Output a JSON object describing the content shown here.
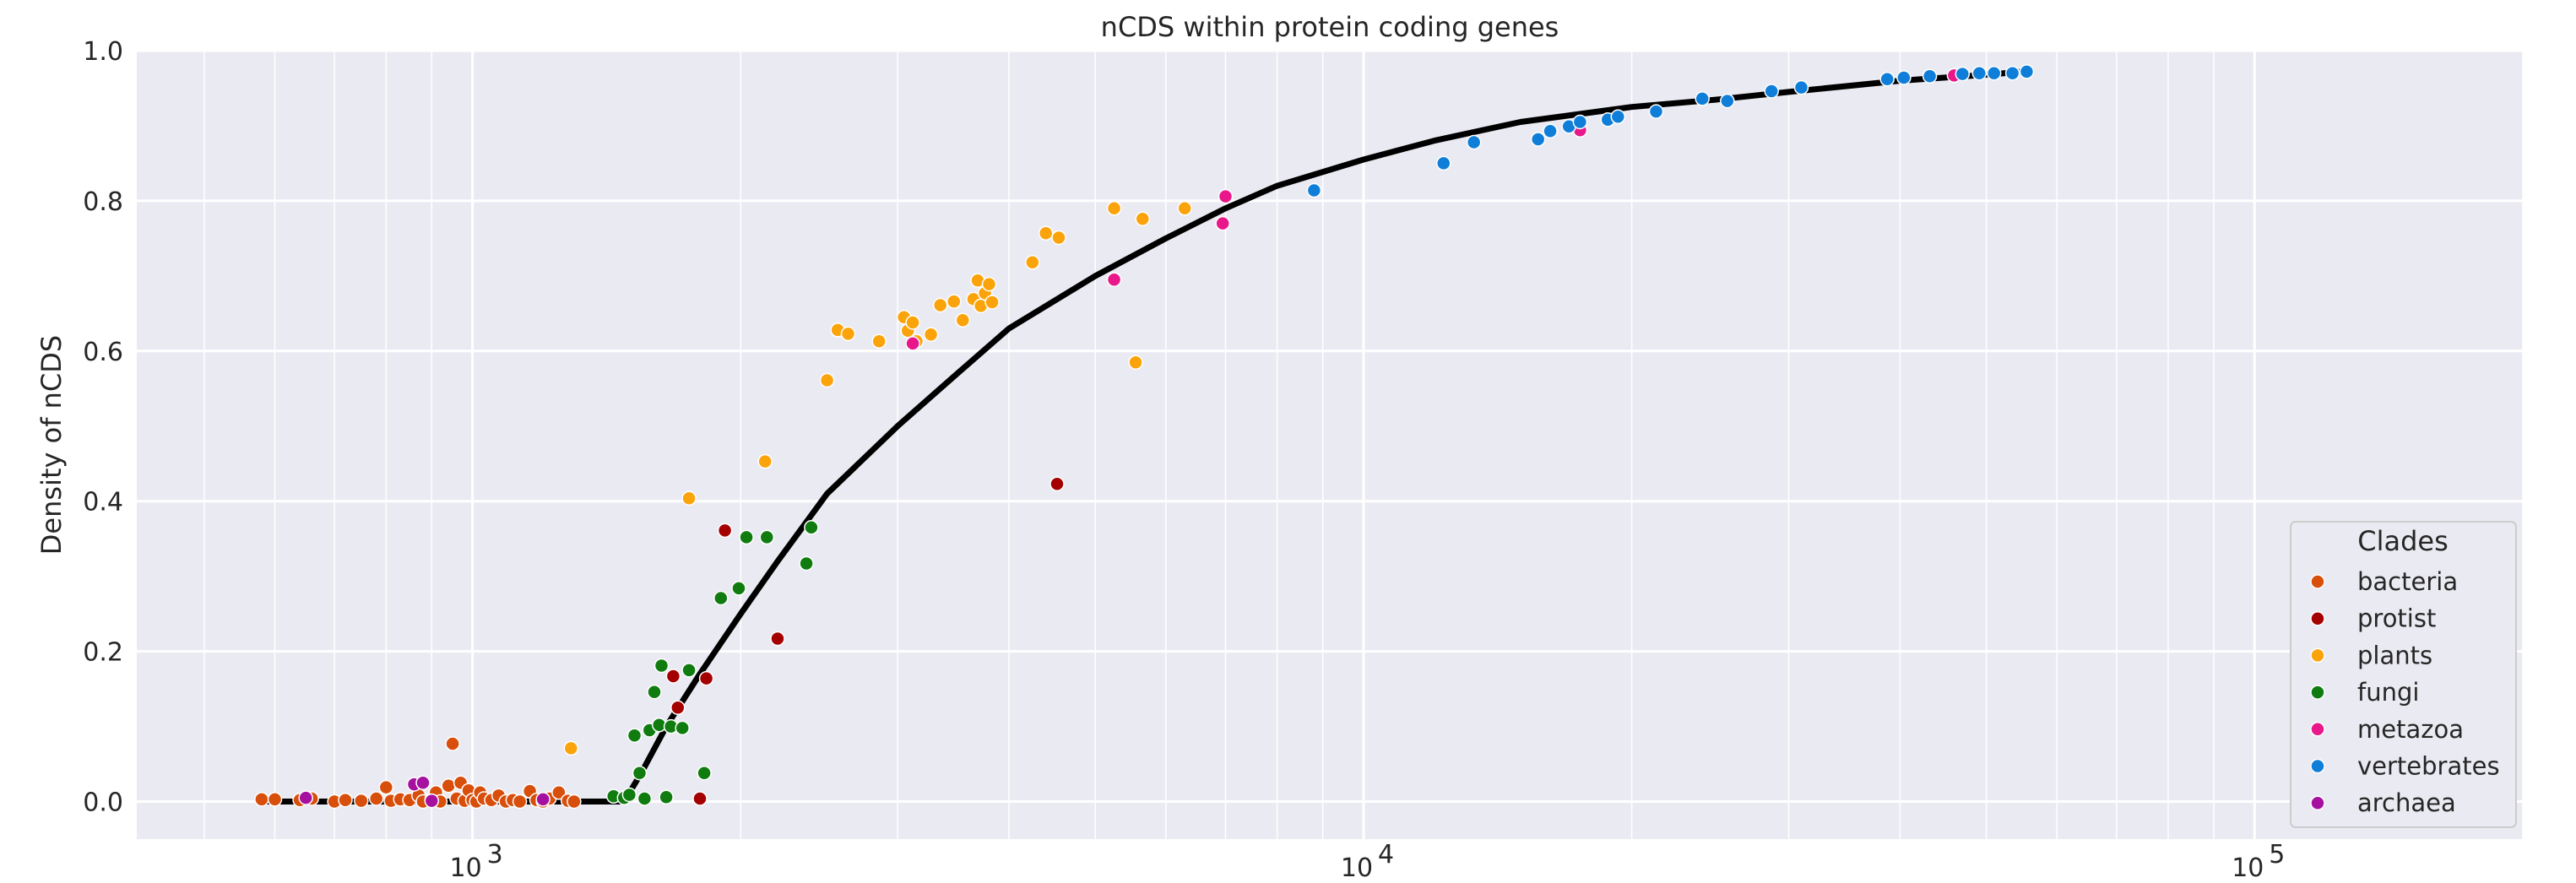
{
  "chart_data": {
    "type": "scatter",
    "title": "nCDS within protein coding genes",
    "xlabel": "",
    "ylabel": "Density of nCDS",
    "x_scale": "log",
    "xlim": [
      420,
      200000
    ],
    "ylim": [
      -0.05,
      1.0
    ],
    "grid": true,
    "x_major_ticks": [
      {
        "value": 1000,
        "label": "10",
        "exp": "3"
      },
      {
        "value": 10000,
        "label": "10",
        "exp": "4"
      },
      {
        "value": 100000,
        "label": "10",
        "exp": "5"
      }
    ],
    "x_minor_ticks": [
      500,
      600,
      700,
      800,
      900,
      2000,
      3000,
      4000,
      5000,
      6000,
      7000,
      8000,
      9000,
      20000,
      30000,
      40000,
      50000,
      60000,
      70000,
      80000,
      90000,
      200000
    ],
    "y_ticks": [
      {
        "value": 0.0,
        "label": "0.0"
      },
      {
        "value": 0.2,
        "label": "0.2"
      },
      {
        "value": 0.4,
        "label": "0.4"
      },
      {
        "value": 0.6,
        "label": "0.6"
      },
      {
        "value": 0.8,
        "label": "0.8"
      },
      {
        "value": 1.0,
        "label": "1.0"
      }
    ],
    "legend": {
      "title": "Clades",
      "position": "lower-right"
    },
    "fit_line": {
      "color": "#000000",
      "points": [
        [
          580,
          0.0
        ],
        [
          1480,
          0.0
        ],
        [
          1550,
          0.04
        ],
        [
          1650,
          0.1
        ],
        [
          1800,
          0.17
        ],
        [
          2000,
          0.25
        ],
        [
          2200,
          0.32
        ],
        [
          2500,
          0.41
        ],
        [
          3000,
          0.5
        ],
        [
          3500,
          0.57
        ],
        [
          4000,
          0.63
        ],
        [
          5000,
          0.7
        ],
        [
          6000,
          0.75
        ],
        [
          7000,
          0.79
        ],
        [
          8000,
          0.82
        ],
        [
          10000,
          0.855
        ],
        [
          12000,
          0.88
        ],
        [
          15000,
          0.905
        ],
        [
          20000,
          0.925
        ],
        [
          25000,
          0.935
        ],
        [
          30000,
          0.945
        ],
        [
          40000,
          0.96
        ],
        [
          50000,
          0.968
        ],
        [
          55000,
          0.972
        ]
      ]
    },
    "series": [
      {
        "name": "bacteria",
        "color": "#d84e0b",
        "points": [
          [
            580,
            0.003
          ],
          [
            600,
            0.003
          ],
          [
            640,
            0.002
          ],
          [
            660,
            0.004
          ],
          [
            700,
            0.0
          ],
          [
            720,
            0.002
          ],
          [
            750,
            0.001
          ],
          [
            780,
            0.004
          ],
          [
            800,
            0.019
          ],
          [
            810,
            0.001
          ],
          [
            830,
            0.003
          ],
          [
            850,
            0.002
          ],
          [
            870,
            0.008
          ],
          [
            880,
            0.0
          ],
          [
            900,
            0.003
          ],
          [
            910,
            0.012
          ],
          [
            920,
            0.0
          ],
          [
            940,
            0.021
          ],
          [
            950,
            0.077
          ],
          [
            960,
            0.004
          ],
          [
            970,
            0.025
          ],
          [
            980,
            0.001
          ],
          [
            990,
            0.015
          ],
          [
            1000,
            0.002
          ],
          [
            1010,
            0.0
          ],
          [
            1020,
            0.012
          ],
          [
            1030,
            0.004
          ],
          [
            1050,
            0.002
          ],
          [
            1070,
            0.008
          ],
          [
            1090,
            0.0
          ],
          [
            1110,
            0.002
          ],
          [
            1130,
            0.0
          ],
          [
            1160,
            0.014
          ],
          [
            1180,
            0.002
          ],
          [
            1200,
            0.0
          ],
          [
            1220,
            0.004
          ],
          [
            1250,
            0.012
          ],
          [
            1280,
            0.001
          ],
          [
            1300,
            0.0
          ]
        ]
      },
      {
        "name": "protist",
        "color": "#a50000",
        "points": [
          [
            1680,
            0.167
          ],
          [
            1700,
            0.125
          ],
          [
            1800,
            0.004
          ],
          [
            1830,
            0.164
          ],
          [
            1920,
            0.361
          ],
          [
            2200,
            0.217
          ],
          [
            4530,
            0.423
          ]
        ]
      },
      {
        "name": "plants",
        "color": "#fba30a",
        "points": [
          [
            1290,
            0.071
          ],
          [
            1750,
            0.404
          ],
          [
            2130,
            0.453
          ],
          [
            2500,
            0.561
          ],
          [
            2570,
            0.628
          ],
          [
            2640,
            0.623
          ],
          [
            2860,
            0.613
          ],
          [
            3050,
            0.645
          ],
          [
            3080,
            0.627
          ],
          [
            3120,
            0.638
          ],
          [
            3150,
            0.613
          ],
          [
            3270,
            0.622
          ],
          [
            3350,
            0.661
          ],
          [
            3470,
            0.666
          ],
          [
            3550,
            0.641
          ],
          [
            3650,
            0.669
          ],
          [
            3690,
            0.694
          ],
          [
            3720,
            0.66
          ],
          [
            3760,
            0.677
          ],
          [
            3800,
            0.689
          ],
          [
            3830,
            0.665
          ],
          [
            4250,
            0.718
          ],
          [
            4400,
            0.757
          ],
          [
            4550,
            0.751
          ],
          [
            5250,
            0.79
          ],
          [
            5550,
            0.585
          ],
          [
            5650,
            0.776
          ],
          [
            6300,
            0.79
          ]
        ]
      },
      {
        "name": "fungi",
        "color": "#107c10",
        "points": [
          [
            1440,
            0.007
          ],
          [
            1480,
            0.005
          ],
          [
            1500,
            0.009
          ],
          [
            1520,
            0.088
          ],
          [
            1540,
            0.038
          ],
          [
            1560,
            0.004
          ],
          [
            1580,
            0.095
          ],
          [
            1600,
            0.146
          ],
          [
            1620,
            0.102
          ],
          [
            1630,
            0.181
          ],
          [
            1650,
            0.006
          ],
          [
            1670,
            0.1
          ],
          [
            1720,
            0.098
          ],
          [
            1750,
            0.175
          ],
          [
            1820,
            0.038
          ],
          [
            1900,
            0.271
          ],
          [
            1990,
            0.284
          ],
          [
            2030,
            0.352
          ],
          [
            2140,
            0.352
          ],
          [
            2370,
            0.317
          ],
          [
            2400,
            0.365
          ]
        ]
      },
      {
        "name": "metazoa",
        "color": "#e8178a",
        "points": [
          [
            3120,
            0.61
          ],
          [
            5250,
            0.695
          ],
          [
            6950,
            0.77
          ],
          [
            7000,
            0.806
          ],
          [
            17500,
            0.894
          ],
          [
            46000,
            0.967
          ]
        ]
      },
      {
        "name": "vertebrates",
        "color": "#0f7ed8",
        "points": [
          [
            8800,
            0.814
          ],
          [
            12300,
            0.85
          ],
          [
            13300,
            0.878
          ],
          [
            15700,
            0.882
          ],
          [
            16200,
            0.893
          ],
          [
            17000,
            0.899
          ],
          [
            17500,
            0.905
          ],
          [
            18800,
            0.908
          ],
          [
            19300,
            0.912
          ],
          [
            21300,
            0.919
          ],
          [
            24000,
            0.936
          ],
          [
            25600,
            0.933
          ],
          [
            28700,
            0.946
          ],
          [
            31000,
            0.951
          ],
          [
            38700,
            0.962
          ],
          [
            40400,
            0.964
          ],
          [
            43200,
            0.966
          ],
          [
            47000,
            0.969
          ],
          [
            49100,
            0.97
          ],
          [
            51000,
            0.97
          ],
          [
            53500,
            0.97
          ],
          [
            55500,
            0.972
          ]
        ]
      },
      {
        "name": "archaea",
        "color": "#a5119e",
        "points": [
          [
            650,
            0.005
          ],
          [
            860,
            0.023
          ],
          [
            880,
            0.025
          ],
          [
            900,
            0.001
          ],
          [
            1200,
            0.003
          ]
        ]
      }
    ]
  }
}
